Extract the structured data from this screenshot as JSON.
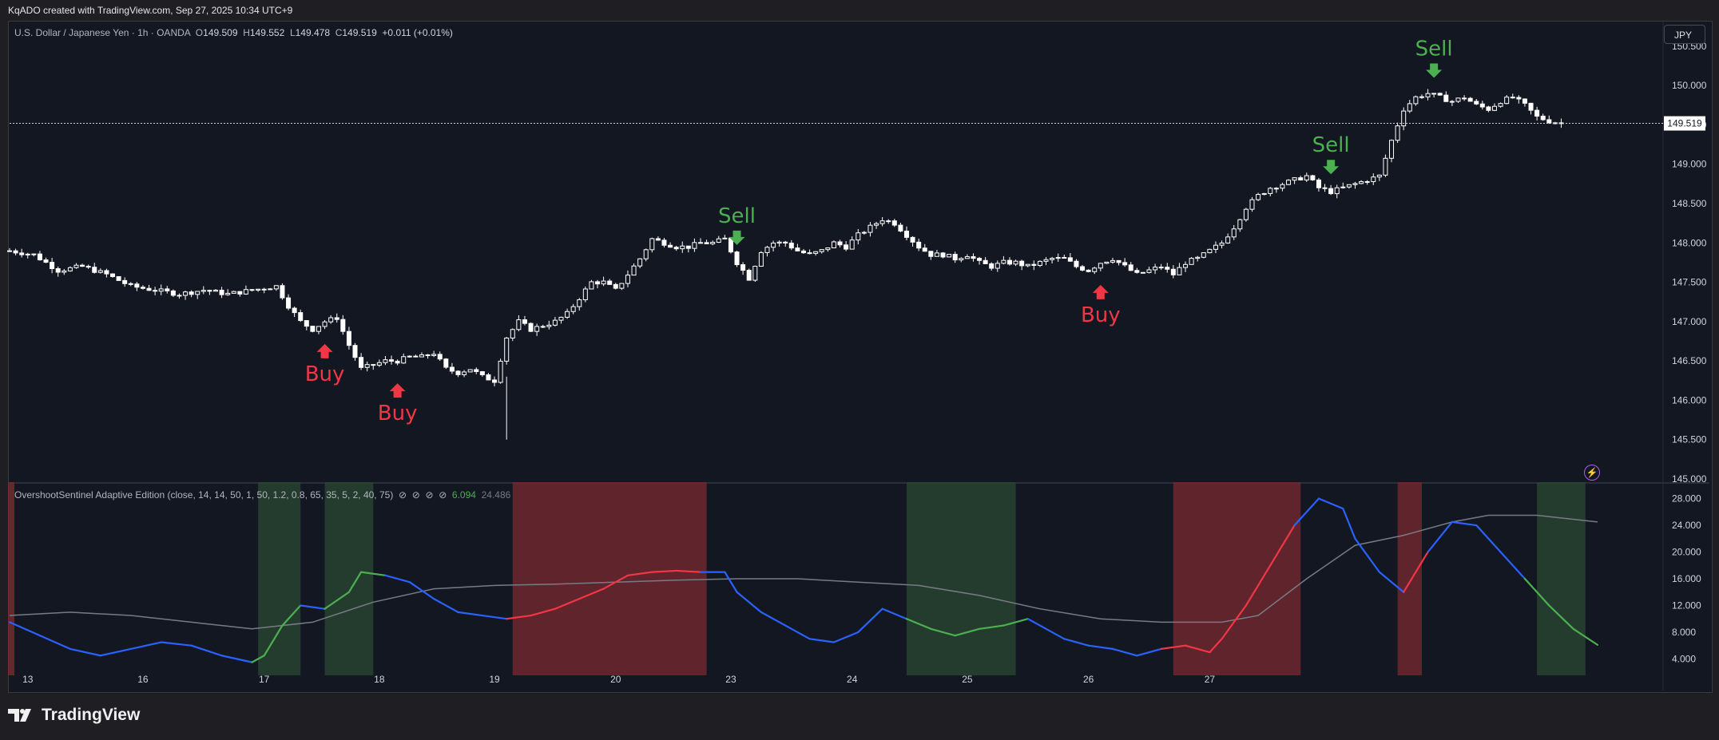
{
  "header": {
    "text": "KqADO created with TradingView.com, Sep 27, 2025 10:34 UTC+9"
  },
  "symbol": {
    "name": "U.S. Dollar / Japanese Yen · 1h · OANDA",
    "o_label": "O",
    "o": "149.509",
    "h_label": "H",
    "h": "149.552",
    "l_label": "L",
    "l": "149.478",
    "c_label": "C",
    "c": "149.519",
    "change": "+0.011 (+0.01%)"
  },
  "currency_button": "JPY",
  "indicator": {
    "name": "OvershootSentinel Adaptive Edition (close, 14, 14, 50, 1, 50, 1.2, 0.8, 65, 35, 5, 2, 40, 75)",
    "icons": [
      "eye-off-icon",
      "eye-off-icon",
      "eye-off-icon",
      "eye-off-icon"
    ],
    "value1": "6.094",
    "value2": "24.486"
  },
  "footer_brand": "TradingView",
  "colors": {
    "bg": "#131722",
    "grid": "#1e222d",
    "candle": "#ffffff",
    "buy": "#f23645",
    "sell": "#4caf50",
    "blue": "#2962ff",
    "red_line": "#f23645",
    "green_line": "#4caf50",
    "gray_line": "#787b86",
    "red_zone": "#7a2a30",
    "green_zone": "#2b4a33"
  },
  "chart_data": [
    {
      "type": "candlestick",
      "title": "U.S. Dollar / Japanese Yen · 1h · OANDA",
      "x_ticks": [
        "13",
        "16",
        "17",
        "18",
        "19",
        "20",
        "23",
        "24",
        "25",
        "26",
        "27"
      ],
      "y_ticks": [
        "150.500",
        "150.000",
        "149.500",
        "149.000",
        "148.500",
        "148.000",
        "147.500",
        "147.000",
        "146.500",
        "146.000",
        "145.500",
        "145.000"
      ],
      "ylim": [
        145.0,
        150.6
      ],
      "last_price": "149.519",
      "close_path": [
        [
          0,
          147.9
        ],
        [
          4,
          147.85
        ],
        [
          8,
          147.65
        ],
        [
          12,
          147.7
        ],
        [
          16,
          147.6
        ],
        [
          20,
          147.45
        ],
        [
          24,
          147.4
        ],
        [
          28,
          147.35
        ],
        [
          32,
          147.4
        ],
        [
          36,
          147.35
        ],
        [
          40,
          147.4
        ],
        [
          44,
          147.45
        ],
        [
          46,
          147.2
        ],
        [
          48,
          147.0
        ],
        [
          50,
          146.9
        ],
        [
          52,
          147.0
        ],
        [
          54,
          147.05
        ],
        [
          56,
          146.7
        ],
        [
          58,
          146.4
        ],
        [
          60,
          146.45
        ],
        [
          62,
          146.5
        ],
        [
          64,
          146.5
        ],
        [
          66,
          146.55
        ],
        [
          68,
          146.55
        ],
        [
          70,
          146.6
        ],
        [
          72,
          146.4
        ],
        [
          74,
          146.35
        ],
        [
          76,
          146.4
        ],
        [
          78,
          146.3
        ],
        [
          80,
          146.25
        ],
        [
          82,
          146.8
        ],
        [
          84,
          147.0
        ],
        [
          86,
          146.9
        ],
        [
          88,
          146.95
        ],
        [
          90,
          147.0
        ],
        [
          92,
          147.1
        ],
        [
          94,
          147.3
        ],
        [
          96,
          147.5
        ],
        [
          98,
          147.5
        ],
        [
          100,
          147.4
        ],
        [
          102,
          147.6
        ],
        [
          104,
          147.8
        ],
        [
          106,
          148.05
        ],
        [
          108,
          148.0
        ],
        [
          110,
          147.95
        ],
        [
          112,
          147.95
        ],
        [
          114,
          148.0
        ],
        [
          116,
          148.0
        ],
        [
          118,
          148.05
        ],
        [
          120,
          147.75
        ],
        [
          122,
          147.55
        ],
        [
          124,
          147.9
        ],
        [
          126,
          148.0
        ],
        [
          128,
          148.0
        ],
        [
          130,
          147.9
        ],
        [
          132,
          147.85
        ],
        [
          134,
          147.9
        ],
        [
          136,
          148.0
        ],
        [
          138,
          147.95
        ],
        [
          140,
          148.1
        ],
        [
          142,
          148.2
        ],
        [
          144,
          148.3
        ],
        [
          146,
          148.25
        ],
        [
          148,
          148.1
        ],
        [
          150,
          147.95
        ],
        [
          152,
          147.85
        ],
        [
          154,
          147.85
        ],
        [
          156,
          147.8
        ],
        [
          158,
          147.85
        ],
        [
          160,
          147.75
        ],
        [
          162,
          147.7
        ],
        [
          164,
          147.75
        ],
        [
          166,
          147.75
        ],
        [
          168,
          147.7
        ],
        [
          170,
          147.75
        ],
        [
          172,
          147.8
        ],
        [
          174,
          147.8
        ],
        [
          176,
          147.7
        ],
        [
          178,
          147.65
        ],
        [
          180,
          147.75
        ],
        [
          182,
          147.8
        ],
        [
          184,
          147.7
        ],
        [
          186,
          147.6
        ],
        [
          188,
          147.65
        ],
        [
          190,
          147.7
        ],
        [
          192,
          147.6
        ],
        [
          194,
          147.75
        ],
        [
          196,
          147.8
        ],
        [
          198,
          147.9
        ],
        [
          200,
          148.0
        ],
        [
          202,
          148.2
        ],
        [
          204,
          148.45
        ],
        [
          206,
          148.6
        ],
        [
          208,
          148.7
        ],
        [
          210,
          148.75
        ],
        [
          212,
          148.8
        ],
        [
          214,
          148.85
        ],
        [
          216,
          148.7
        ],
        [
          218,
          148.65
        ],
        [
          220,
          148.7
        ],
        [
          222,
          148.75
        ],
        [
          224,
          148.8
        ],
        [
          226,
          148.85
        ],
        [
          228,
          149.3
        ],
        [
          230,
          149.7
        ],
        [
          232,
          149.85
        ],
        [
          234,
          149.9
        ],
        [
          236,
          149.85
        ],
        [
          238,
          149.8
        ],
        [
          240,
          149.85
        ],
        [
          242,
          149.75
        ],
        [
          244,
          149.7
        ],
        [
          246,
          149.8
        ],
        [
          248,
          149.85
        ],
        [
          250,
          149.75
        ],
        [
          252,
          149.6
        ],
        [
          254,
          149.55
        ],
        [
          256,
          149.52
        ]
      ],
      "annotations": [
        {
          "label": "Buy",
          "day_x": 52
        },
        {
          "label": "Buy",
          "day_x": 64
        },
        {
          "label": "Sell",
          "day_x": 120
        },
        {
          "label": "Buy",
          "day_x": 180
        },
        {
          "label": "Sell",
          "day_x": 218
        },
        {
          "label": "Sell",
          "day_x": 235
        }
      ]
    },
    {
      "type": "line",
      "title": "OvershootSentinel Adaptive Edition",
      "y_ticks": [
        "28.000",
        "24.000",
        "20.000",
        "16.000",
        "12.000",
        "8.000",
        "4.000"
      ],
      "ylim": [
        2.5,
        29.5
      ],
      "series": [
        {
          "name": "oscillator",
          "points": [
            [
              0,
              9.5
            ],
            [
              5,
              7.5
            ],
            [
              10,
              5.5
            ],
            [
              15,
              4.5
            ],
            [
              20,
              5.5
            ],
            [
              25,
              6.5
            ],
            [
              30,
              6.0
            ],
            [
              35,
              4.5
            ],
            [
              40,
              3.5
            ],
            [
              42,
              4.5
            ],
            [
              45,
              9.0
            ],
            [
              48,
              12.0
            ],
            [
              52,
              11.5
            ],
            [
              56,
              14.0
            ],
            [
              58,
              17.0
            ],
            [
              62,
              16.5
            ],
            [
              66,
              15.5
            ],
            [
              70,
              13.0
            ],
            [
              74,
              11.0
            ],
            [
              78,
              10.5
            ],
            [
              82,
              10.0
            ],
            [
              86,
              10.5
            ],
            [
              90,
              11.5
            ],
            [
              94,
              13.0
            ],
            [
              98,
              14.5
            ],
            [
              102,
              16.5
            ],
            [
              106,
              17.0
            ],
            [
              110,
              17.2
            ],
            [
              114,
              17.0
            ],
            [
              118,
              17.0
            ],
            [
              120,
              14.0
            ],
            [
              124,
              11.0
            ],
            [
              128,
              9.0
            ],
            [
              132,
              7.0
            ],
            [
              136,
              6.5
            ],
            [
              140,
              8.0
            ],
            [
              144,
              11.5
            ],
            [
              148,
              10.0
            ],
            [
              152,
              8.5
            ],
            [
              156,
              7.5
            ],
            [
              160,
              8.5
            ],
            [
              164,
              9.0
            ],
            [
              168,
              10.0
            ],
            [
              170,
              9.0
            ],
            [
              174,
              7.0
            ],
            [
              178,
              6.0
            ],
            [
              182,
              5.5
            ],
            [
              186,
              4.5
            ],
            [
              190,
              5.5
            ],
            [
              194,
              6.0
            ],
            [
              198,
              5.0
            ],
            [
              200,
              7.0
            ],
            [
              204,
              12.0
            ],
            [
              208,
              18.0
            ],
            [
              212,
              24.0
            ],
            [
              216,
              28.0
            ],
            [
              220,
              26.5
            ],
            [
              222,
              22.0
            ],
            [
              226,
              17.0
            ],
            [
              230,
              14.0
            ],
            [
              234,
              20.0
            ],
            [
              238,
              24.5
            ],
            [
              242,
              24.0
            ],
            [
              246,
              20.0
            ],
            [
              250,
              16.0
            ],
            [
              254,
              12.0
            ],
            [
              258,
              8.5
            ],
            [
              262,
              6.1
            ]
          ]
        },
        {
          "name": "baseline",
          "points": [
            [
              0,
              10.5
            ],
            [
              10,
              11.0
            ],
            [
              20,
              10.5
            ],
            [
              30,
              9.5
            ],
            [
              40,
              8.5
            ],
            [
              50,
              9.5
            ],
            [
              60,
              12.5
            ],
            [
              70,
              14.5
            ],
            [
              80,
              15.0
            ],
            [
              90,
              15.2
            ],
            [
              100,
              15.5
            ],
            [
              110,
              15.8
            ],
            [
              120,
              16.0
            ],
            [
              130,
              16.0
            ],
            [
              140,
              15.5
            ],
            [
              150,
              15.0
            ],
            [
              160,
              13.5
            ],
            [
              170,
              11.5
            ],
            [
              180,
              10.0
            ],
            [
              190,
              9.5
            ],
            [
              200,
              9.5
            ],
            [
              206,
              10.5
            ],
            [
              214,
              16.0
            ],
            [
              222,
              21.0
            ],
            [
              230,
              22.5
            ],
            [
              238,
              24.5
            ],
            [
              244,
              25.5
            ],
            [
              252,
              25.5
            ],
            [
              262,
              24.5
            ]
          ]
        }
      ],
      "zones": [
        {
          "type": "red",
          "start": -2,
          "end": 0
        },
        {
          "type": "green",
          "start": 41,
          "end": 48
        },
        {
          "type": "green",
          "start": 52,
          "end": 60
        },
        {
          "type": "red",
          "start": 83,
          "end": 115
        },
        {
          "type": "green",
          "start": 148,
          "end": 166
        },
        {
          "type": "red",
          "start": 192,
          "end": 213
        },
        {
          "type": "red",
          "start": 229,
          "end": 233
        },
        {
          "type": "green",
          "start": 252,
          "end": 260
        }
      ]
    }
  ]
}
